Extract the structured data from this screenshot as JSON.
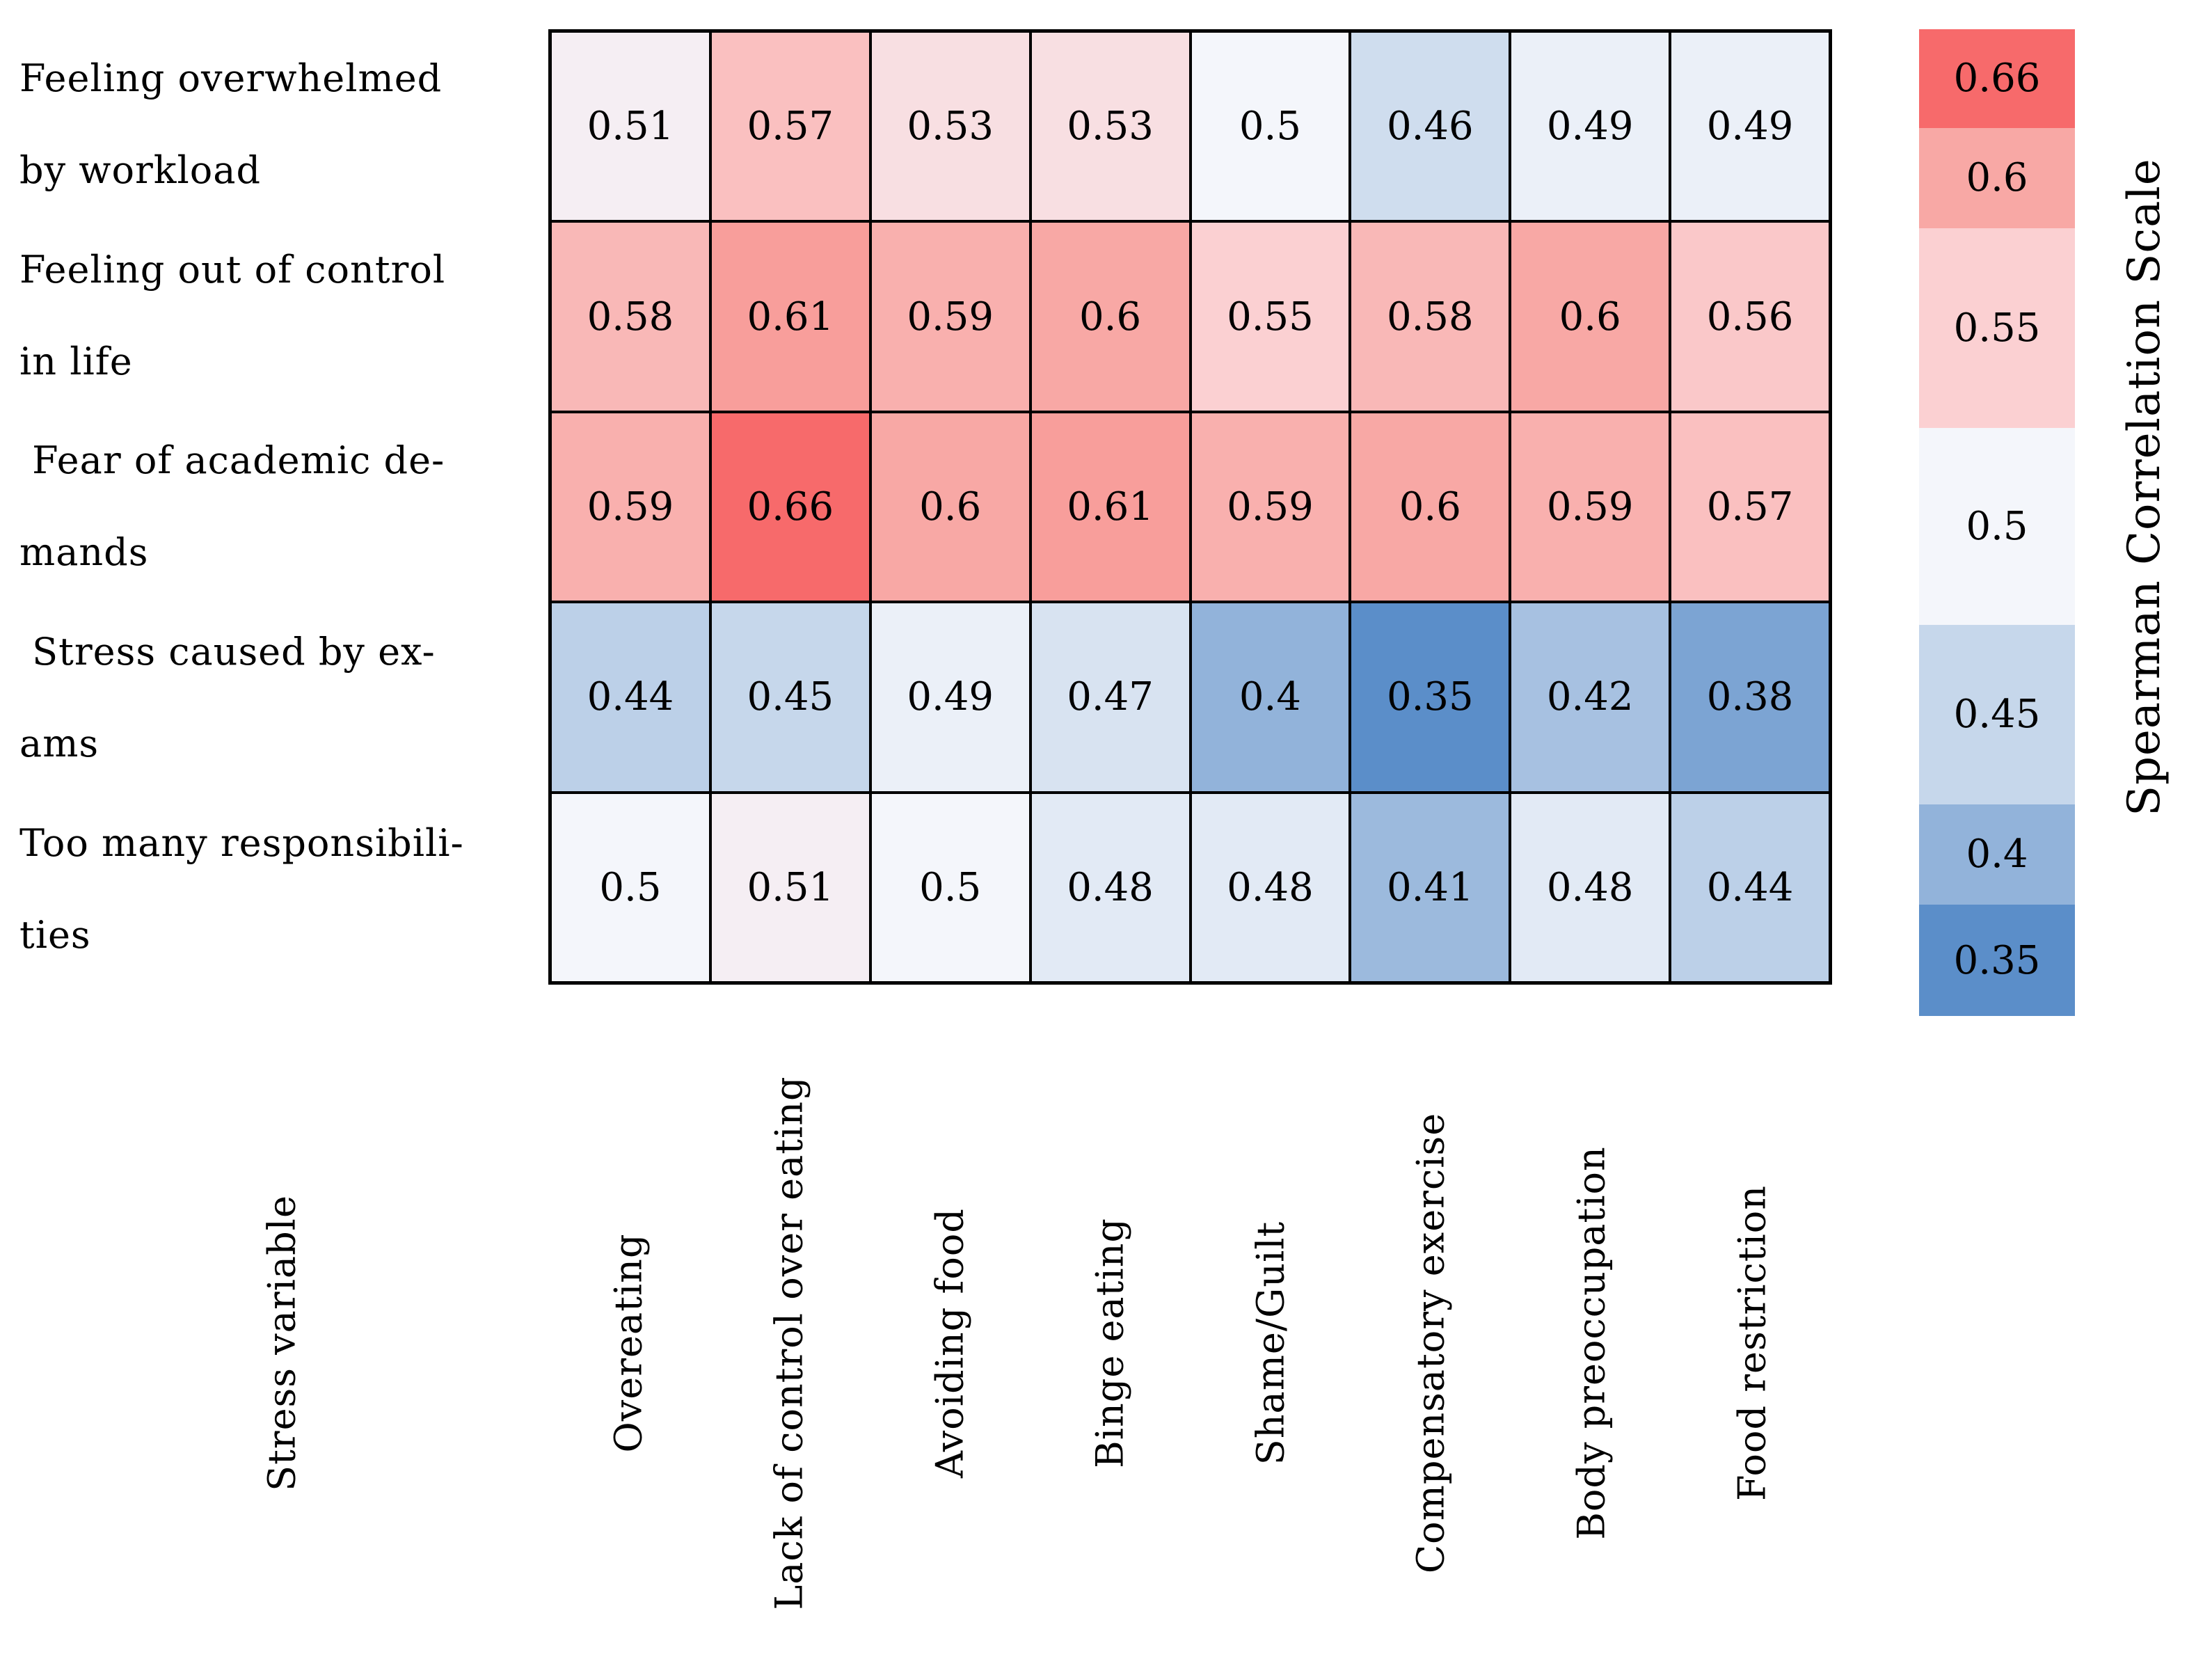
{
  "chart_data": {
    "type": "heatmap",
    "corner_label": "Stress variable",
    "row_labels": [
      "Feeling overwhelmed\nby workload",
      "Feeling out of control\nin life",
      " Fear of academic de-\nmands",
      " Stress caused by ex-\nams",
      "Too many responsibili-\nties"
    ],
    "column_labels": [
      "Overeating",
      "Lack of control over eating",
      "Avoiding food",
      "Binge eating",
      "Shame/Guilt",
      "Compensatory exercise",
      "Body preoccupation",
      "Food restriction"
    ],
    "values": [
      [
        0.51,
        0.57,
        0.53,
        0.53,
        0.5,
        0.46,
        0.49,
        0.49
      ],
      [
        0.58,
        0.61,
        0.59,
        0.6,
        0.55,
        0.58,
        0.6,
        0.56
      ],
      [
        0.59,
        0.66,
        0.6,
        0.61,
        0.59,
        0.6,
        0.59,
        0.57
      ],
      [
        0.44,
        0.45,
        0.49,
        0.47,
        0.4,
        0.35,
        0.42,
        0.38
      ],
      [
        0.5,
        0.51,
        0.5,
        0.48,
        0.48,
        0.41,
        0.48,
        0.44
      ]
    ],
    "value_range": [
      0.35,
      0.66
    ],
    "legend": {
      "title": "Spearman Correlation Scale",
      "ticks": [
        0.66,
        0.6,
        0.55,
        0.5,
        0.45,
        0.4,
        0.35
      ],
      "colors": [
        "#f76a6b",
        "#f8a8a5",
        "#fbd0d2",
        "#f4f6fb",
        "#c6d7eb",
        "#92b3da",
        "#5b8ec9"
      ],
      "position": "right"
    },
    "color_anchors": [
      {
        "value": 0.35,
        "color": "#5b8ec9"
      },
      {
        "value": 0.4,
        "color": "#92b3da"
      },
      {
        "value": 0.45,
        "color": "#c6d7eb"
      },
      {
        "value": 0.5,
        "color": "#f4f6fb"
      },
      {
        "value": 0.55,
        "color": "#fbd0d2"
      },
      {
        "value": 0.6,
        "color": "#f8a8a5"
      },
      {
        "value": 0.66,
        "color": "#f76a6b"
      }
    ],
    "grid_border_color": "#000000",
    "text_color": "#000000"
  }
}
